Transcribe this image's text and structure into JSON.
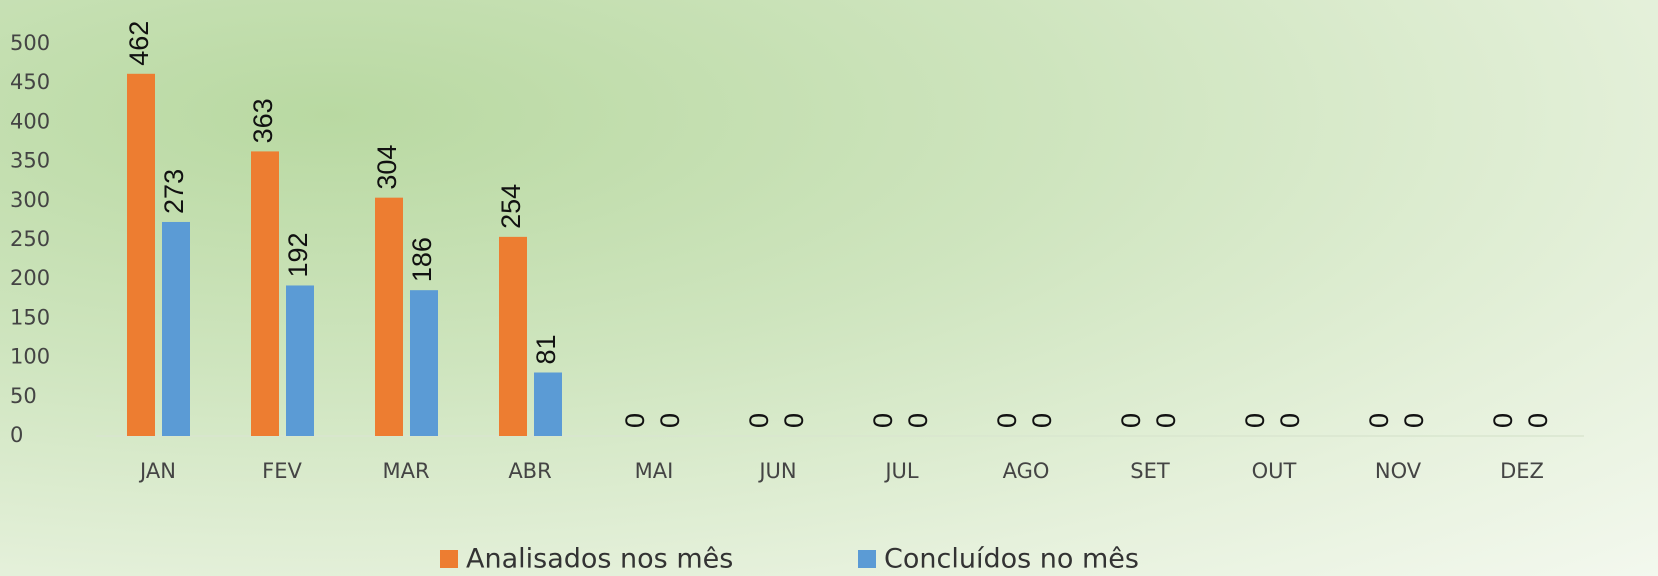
{
  "chart_data": {
    "type": "bar",
    "categories": [
      "JAN",
      "FEV",
      "MAR",
      "ABR",
      "MAI",
      "JUN",
      "JUL",
      "AGO",
      "SET",
      "OUT",
      "NOV",
      "DEZ"
    ],
    "series": [
      {
        "name": "Analisados nos mês",
        "color": "#ed7d31",
        "values": [
          462,
          363,
          304,
          254,
          0,
          0,
          0,
          0,
          0,
          0,
          0,
          0
        ]
      },
      {
        "name": "Concluídos no mês",
        "color": "#5b9bd5",
        "values": [
          273,
          192,
          186,
          81,
          0,
          0,
          0,
          0,
          0,
          0,
          0,
          0
        ]
      }
    ],
    "ylim": [
      0,
      500
    ],
    "yticks": [
      0,
      50,
      100,
      150,
      200,
      250,
      300,
      350,
      400,
      450,
      500
    ],
    "grid": false,
    "legend": "bottom"
  }
}
